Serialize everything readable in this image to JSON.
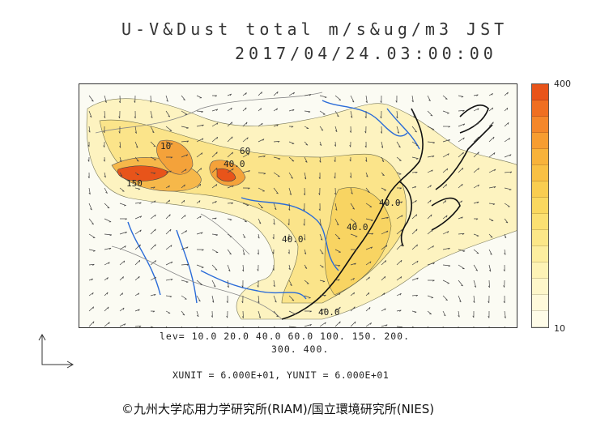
{
  "header": {
    "title": "U-V&Dust total m/s&ug/m3 JST",
    "datetime": "2017/04/24.03:00:00"
  },
  "map": {
    "contour_labels": [
      "150",
      "40.0",
      "40.0",
      "10",
      "40.0",
      "40.0",
      "40.0",
      "60"
    ]
  },
  "colorbar": {
    "max_label": "400",
    "min_label": "10",
    "colors": [
      "#e8541a",
      "#ef6f21",
      "#f4872a",
      "#f79d31",
      "#f8b23a",
      "#f9c043",
      "#f9cd50",
      "#fad85f",
      "#fbe072",
      "#fce788",
      "#fdee9f",
      "#fdf3b6",
      "#fef7ca",
      "#fffadb",
      "#fffce8"
    ]
  },
  "footer": {
    "levels_line1": "lev= 10.0 20.0 40.0 60.0 100. 150. 200.",
    "levels_line2": "300. 400.",
    "units": "XUNIT = 6.000E+01, YUNIT = 6.000E+01",
    "credit": "©九州大学応用力学研究所(RIAM)/国立環境研究所(NIES)"
  }
}
